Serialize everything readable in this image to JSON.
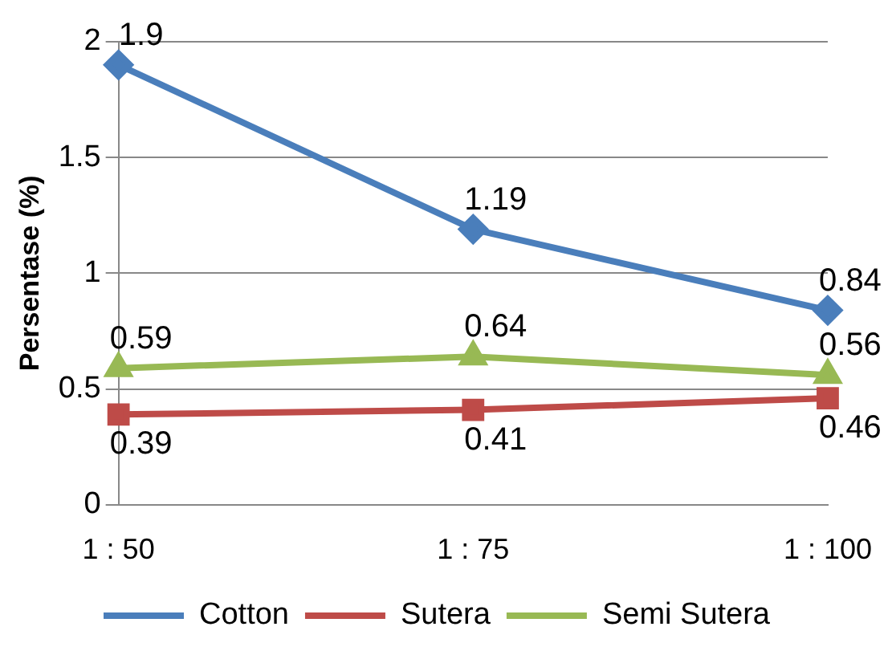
{
  "chart_data": {
    "type": "line",
    "ylabel": "Persentase (%)",
    "categories": [
      "1 : 50",
      "1 : 75",
      "1 : 100"
    ],
    "series": [
      {
        "name": "Cotton",
        "color": "#4a7ebb",
        "marker": "diamond",
        "values": [
          1.9,
          1.19,
          0.84
        ]
      },
      {
        "name": "Sutera",
        "color": "#be4b48",
        "marker": "square",
        "values": [
          0.39,
          0.41,
          0.46
        ]
      },
      {
        "name": "Semi Sutera",
        "color": "#98b954",
        "marker": "triangle",
        "values": [
          0.59,
          0.64,
          0.56
        ]
      }
    ],
    "ylim": [
      0,
      2
    ],
    "yticks": [
      0,
      0.5,
      1,
      1.5,
      2
    ],
    "grid": "y",
    "legend": "bottom",
    "data_labels": true
  }
}
